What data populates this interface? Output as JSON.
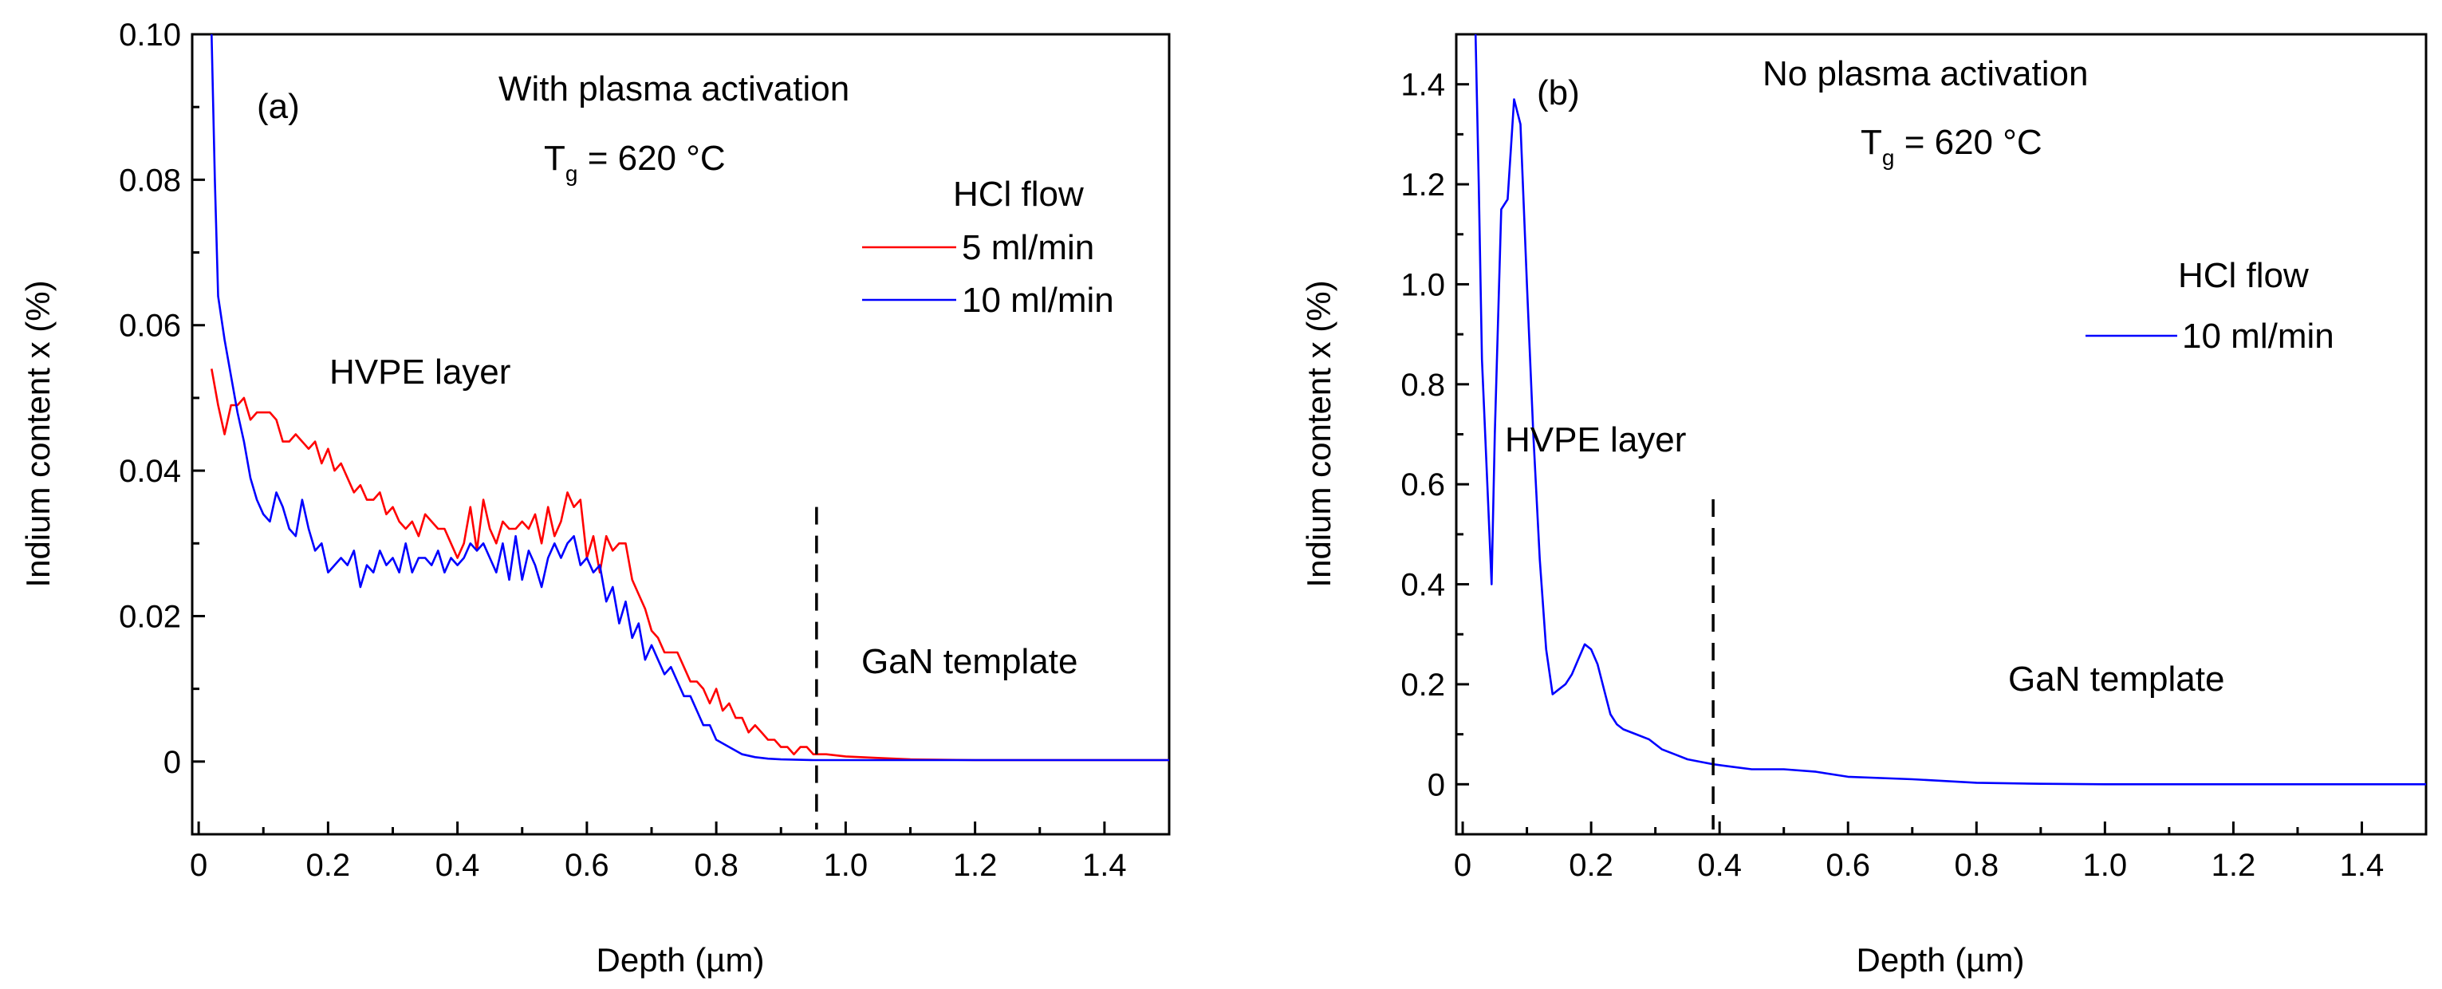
{
  "chart_data": [
    {
      "type": "line",
      "panel_label": "(a)",
      "xlabel": "Depth (µm)",
      "ylabel": "Indium content x (%)",
      "xlim": [
        -0.01,
        1.5
      ],
      "ylim": [
        -0.01,
        0.1
      ],
      "xticks": [
        0,
        0.2,
        0.4,
        0.6,
        0.8,
        1.0,
        1.2,
        1.4
      ],
      "xtick_labels": [
        "0",
        "0.2",
        "0.4",
        "0.6",
        "0.8",
        "1.0",
        "1.2",
        "1.4"
      ],
      "yticks": [
        0,
        0.02,
        0.04,
        0.06,
        0.08,
        0.1
      ],
      "ytick_labels": [
        "0",
        "0.02",
        "0.04",
        "0.06",
        "0.08",
        "0.10"
      ],
      "title_text": "With plasma activation",
      "temp_main": "T",
      "temp_sub": "g",
      "temp_rest": " = 620 °C",
      "legend_title": "HCl flow",
      "layer_label": "HVPE layer",
      "template_label": "GaN template",
      "divider_x": 0.955,
      "series": [
        {
          "name": "5 ml/min",
          "color": "#ff0000",
          "x": [
            0.02,
            0.03,
            0.04,
            0.05,
            0.06,
            0.07,
            0.08,
            0.09,
            0.1,
            0.11,
            0.12,
            0.13,
            0.14,
            0.15,
            0.16,
            0.17,
            0.18,
            0.19,
            0.2,
            0.21,
            0.22,
            0.23,
            0.24,
            0.25,
            0.26,
            0.27,
            0.28,
            0.29,
            0.3,
            0.31,
            0.32,
            0.33,
            0.34,
            0.35,
            0.36,
            0.37,
            0.38,
            0.39,
            0.4,
            0.41,
            0.42,
            0.43,
            0.44,
            0.45,
            0.46,
            0.47,
            0.48,
            0.49,
            0.5,
            0.51,
            0.52,
            0.53,
            0.54,
            0.55,
            0.56,
            0.57,
            0.58,
            0.59,
            0.6,
            0.61,
            0.62,
            0.63,
            0.64,
            0.65,
            0.66,
            0.67,
            0.68,
            0.69,
            0.7,
            0.71,
            0.72,
            0.73,
            0.74,
            0.75,
            0.76,
            0.77,
            0.78,
            0.79,
            0.8,
            0.81,
            0.82,
            0.83,
            0.84,
            0.85,
            0.86,
            0.87,
            0.88,
            0.89,
            0.9,
            0.91,
            0.92,
            0.93,
            0.94,
            0.95,
            0.97,
            1.0,
            1.05,
            1.1,
            1.2,
            1.3,
            1.4,
            1.5
          ],
          "y": [
            0.054,
            0.049,
            0.045,
            0.049,
            0.049,
            0.05,
            0.047,
            0.048,
            0.048,
            0.048,
            0.047,
            0.044,
            0.044,
            0.045,
            0.044,
            0.043,
            0.044,
            0.041,
            0.043,
            0.04,
            0.041,
            0.039,
            0.037,
            0.038,
            0.036,
            0.036,
            0.037,
            0.034,
            0.035,
            0.033,
            0.032,
            0.033,
            0.031,
            0.034,
            0.033,
            0.032,
            0.032,
            0.03,
            0.028,
            0.03,
            0.035,
            0.029,
            0.036,
            0.032,
            0.03,
            0.033,
            0.032,
            0.032,
            0.033,
            0.032,
            0.034,
            0.03,
            0.035,
            0.031,
            0.033,
            0.037,
            0.035,
            0.036,
            0.028,
            0.031,
            0.026,
            0.031,
            0.029,
            0.03,
            0.03,
            0.025,
            0.023,
            0.021,
            0.018,
            0.017,
            0.015,
            0.015,
            0.015,
            0.013,
            0.011,
            0.011,
            0.01,
            0.008,
            0.01,
            0.007,
            0.008,
            0.006,
            0.006,
            0.004,
            0.005,
            0.004,
            0.003,
            0.003,
            0.002,
            0.002,
            0.001,
            0.002,
            0.002,
            0.001,
            0.001,
            0.0007,
            0.0005,
            0.0003,
            0.0002,
            0.0002,
            0.0002,
            0.0002
          ]
        },
        {
          "name": "10 ml/min",
          "color": "#0000ff",
          "x": [
            0.02,
            0.025,
            0.03,
            0.04,
            0.05,
            0.06,
            0.07,
            0.08,
            0.09,
            0.1,
            0.11,
            0.12,
            0.13,
            0.14,
            0.15,
            0.16,
            0.17,
            0.18,
            0.19,
            0.2,
            0.21,
            0.22,
            0.23,
            0.24,
            0.25,
            0.26,
            0.27,
            0.28,
            0.29,
            0.3,
            0.31,
            0.32,
            0.33,
            0.34,
            0.35,
            0.36,
            0.37,
            0.38,
            0.39,
            0.4,
            0.41,
            0.42,
            0.43,
            0.44,
            0.45,
            0.46,
            0.47,
            0.48,
            0.49,
            0.5,
            0.51,
            0.52,
            0.53,
            0.54,
            0.55,
            0.56,
            0.57,
            0.58,
            0.59,
            0.6,
            0.61,
            0.62,
            0.63,
            0.64,
            0.65,
            0.66,
            0.67,
            0.68,
            0.69,
            0.7,
            0.71,
            0.72,
            0.73,
            0.74,
            0.75,
            0.76,
            0.77,
            0.78,
            0.79,
            0.8,
            0.82,
            0.84,
            0.86,
            0.88,
            0.9,
            0.95,
            1.0,
            1.1,
            1.2,
            1.3,
            1.4,
            1.5
          ],
          "y": [
            0.1,
            0.08,
            0.064,
            0.058,
            0.053,
            0.048,
            0.044,
            0.039,
            0.036,
            0.034,
            0.033,
            0.037,
            0.035,
            0.032,
            0.031,
            0.036,
            0.032,
            0.029,
            0.03,
            0.026,
            0.027,
            0.028,
            0.027,
            0.029,
            0.024,
            0.027,
            0.026,
            0.029,
            0.027,
            0.028,
            0.026,
            0.03,
            0.026,
            0.028,
            0.028,
            0.027,
            0.029,
            0.026,
            0.028,
            0.027,
            0.028,
            0.03,
            0.029,
            0.03,
            0.028,
            0.026,
            0.03,
            0.025,
            0.031,
            0.025,
            0.029,
            0.027,
            0.024,
            0.028,
            0.03,
            0.028,
            0.03,
            0.031,
            0.027,
            0.028,
            0.026,
            0.027,
            0.022,
            0.024,
            0.019,
            0.022,
            0.017,
            0.019,
            0.014,
            0.016,
            0.014,
            0.012,
            0.013,
            0.011,
            0.009,
            0.009,
            0.007,
            0.005,
            0.005,
            0.003,
            0.002,
            0.001,
            0.0006,
            0.0004,
            0.0003,
            0.0002,
            0.0002,
            0.0002,
            0.0002,
            0.0002,
            0.0002,
            0.0002
          ]
        }
      ]
    },
    {
      "type": "line",
      "panel_label": "(b)",
      "xlabel": "Depth (µm)",
      "ylabel": "Indium content x (%)",
      "xlim": [
        -0.01,
        1.5
      ],
      "ylim": [
        -0.1,
        1.5
      ],
      "xticks": [
        0,
        0.2,
        0.4,
        0.6,
        0.8,
        1.0,
        1.2,
        1.4
      ],
      "xtick_labels": [
        "0",
        "0.2",
        "0.4",
        "0.6",
        "0.8",
        "1.0",
        "1.2",
        "1.4"
      ],
      "yticks": [
        0,
        0.2,
        0.4,
        0.6,
        0.8,
        1.0,
        1.2,
        1.4
      ],
      "ytick_labels": [
        "0",
        "0.2",
        "0.4",
        "0.6",
        "0.8",
        "1.0",
        "1.2",
        "1.4"
      ],
      "title_text": "No plasma activation",
      "temp_main": "T",
      "temp_sub": "g",
      "temp_rest": " = 620 °C",
      "legend_title": "HCl flow",
      "layer_label": "HVPE layer",
      "template_label": "GaN template",
      "divider_x": 0.39,
      "series": [
        {
          "name": "10 ml/min",
          "color": "#0000ff",
          "x": [
            0.02,
            0.025,
            0.03,
            0.04,
            0.045,
            0.05,
            0.06,
            0.07,
            0.08,
            0.09,
            0.1,
            0.11,
            0.12,
            0.13,
            0.14,
            0.15,
            0.16,
            0.17,
            0.18,
            0.19,
            0.2,
            0.21,
            0.22,
            0.23,
            0.24,
            0.25,
            0.27,
            0.29,
            0.31,
            0.33,
            0.35,
            0.37,
            0.39,
            0.42,
            0.45,
            0.5,
            0.55,
            0.6,
            0.7,
            0.8,
            0.9,
            1.0,
            1.2,
            1.5
          ],
          "y": [
            1.5,
            1.2,
            0.85,
            0.55,
            0.4,
            0.7,
            1.15,
            1.17,
            1.37,
            1.32,
            1.0,
            0.7,
            0.45,
            0.27,
            0.18,
            0.19,
            0.2,
            0.22,
            0.25,
            0.28,
            0.27,
            0.24,
            0.19,
            0.14,
            0.12,
            0.11,
            0.1,
            0.09,
            0.07,
            0.06,
            0.05,
            0.045,
            0.04,
            0.035,
            0.03,
            0.03,
            0.025,
            0.015,
            0.01,
            0.003,
            0.001,
            0.0,
            0.0,
            0.0
          ]
        }
      ]
    }
  ]
}
